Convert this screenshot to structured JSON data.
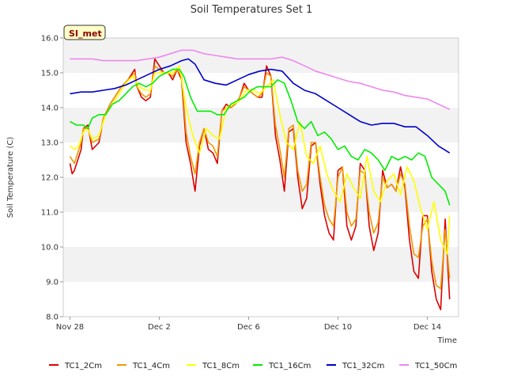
{
  "chart_data": {
    "type": "line",
    "title": "Soil Temperatures Set 1",
    "xlabel": "Time",
    "ylabel": "Soil Temperature (C)",
    "badge": "SI_met",
    "ylim": [
      8.0,
      16.0
    ],
    "yticks": [
      8.0,
      9.0,
      10.0,
      11.0,
      12.0,
      13.0,
      14.0,
      15.0,
      16.0
    ],
    "xlim": [
      -0.3,
      17.4
    ],
    "xticks": [
      {
        "label": "Nov 28",
        "x": 0
      },
      {
        "label": "Dec 2",
        "x": 4
      },
      {
        "label": "Dec 6",
        "x": 8
      },
      {
        "label": "Dec 10",
        "x": 12
      },
      {
        "label": "Dec 14",
        "x": 16
      }
    ],
    "x_units": "days after Nov 28",
    "grid": "horizontal bands",
    "legend_position": "bottom",
    "series": [
      {
        "name": "TC1_2Cm",
        "color": "#dd0000",
        "x": [
          0.0,
          0.1,
          0.2,
          0.4,
          0.5,
          0.6,
          0.8,
          1.0,
          1.3,
          1.5,
          1.8,
          2.0,
          2.3,
          2.6,
          2.9,
          3.0,
          3.2,
          3.4,
          3.6,
          3.8,
          4.0,
          4.2,
          4.4,
          4.6,
          4.8,
          5.0,
          5.2,
          5.4,
          5.6,
          5.8,
          6.0,
          6.2,
          6.4,
          6.6,
          6.8,
          7.0,
          7.2,
          7.4,
          7.6,
          7.8,
          8.0,
          8.2,
          8.4,
          8.6,
          8.8,
          9.0,
          9.2,
          9.4,
          9.6,
          9.8,
          10.0,
          10.2,
          10.4,
          10.6,
          10.8,
          11.0,
          11.2,
          11.4,
          11.6,
          11.8,
          12.0,
          12.2,
          12.4,
          12.6,
          12.8,
          13.0,
          13.2,
          13.4,
          13.6,
          13.8,
          14.0,
          14.2,
          14.4,
          14.6,
          14.8,
          15.0,
          15.2,
          15.4,
          15.6,
          15.8,
          16.0,
          16.2,
          16.4,
          16.6,
          16.8,
          17.0
        ],
        "y": [
          12.4,
          12.1,
          12.2,
          12.6,
          12.8,
          13.4,
          13.5,
          12.8,
          13.0,
          13.7,
          14.1,
          14.3,
          14.6,
          14.8,
          15.1,
          14.6,
          14.3,
          14.2,
          14.3,
          15.4,
          15.2,
          15.0,
          15.0,
          14.8,
          15.1,
          14.8,
          13.0,
          12.4,
          11.6,
          12.9,
          13.4,
          12.8,
          12.7,
          12.4,
          13.9,
          14.1,
          14.0,
          14.1,
          14.3,
          14.7,
          14.5,
          14.4,
          14.3,
          14.3,
          15.2,
          14.9,
          13.2,
          12.5,
          11.6,
          13.3,
          13.4,
          12.0,
          11.1,
          11.4,
          12.9,
          13.0,
          11.8,
          10.9,
          10.4,
          10.2,
          12.2,
          12.3,
          10.6,
          10.2,
          10.6,
          12.4,
          12.2,
          10.6,
          9.9,
          10.4,
          12.2,
          11.7,
          11.8,
          11.6,
          12.3,
          11.7,
          10.2,
          9.3,
          9.1,
          10.9,
          10.9,
          9.3,
          8.5,
          8.2,
          10.8,
          8.5
        ]
      },
      {
        "name": "TC1_4Cm",
        "color": "#ee9900",
        "x": [
          0.0,
          0.2,
          0.4,
          0.5,
          0.6,
          0.8,
          1.0,
          1.3,
          1.5,
          1.8,
          2.0,
          2.3,
          2.6,
          2.9,
          3.0,
          3.2,
          3.4,
          3.6,
          3.8,
          4.0,
          4.2,
          4.4,
          4.6,
          4.8,
          5.0,
          5.2,
          5.4,
          5.6,
          5.8,
          6.0,
          6.2,
          6.4,
          6.6,
          6.8,
          7.0,
          7.2,
          7.4,
          7.6,
          7.8,
          8.0,
          8.2,
          8.4,
          8.6,
          8.8,
          9.0,
          9.2,
          9.4,
          9.6,
          9.8,
          10.0,
          10.2,
          10.4,
          10.6,
          10.8,
          11.0,
          11.2,
          11.4,
          11.6,
          11.8,
          12.0,
          12.2,
          12.4,
          12.6,
          12.8,
          13.0,
          13.2,
          13.4,
          13.6,
          13.8,
          14.0,
          14.2,
          14.4,
          14.6,
          14.8,
          15.0,
          15.2,
          15.4,
          15.6,
          15.8,
          16.0,
          16.2,
          16.4,
          16.6,
          16.8,
          17.0
        ],
        "y": [
          12.6,
          12.4,
          12.8,
          13.0,
          13.4,
          13.4,
          13.0,
          13.1,
          13.7,
          14.1,
          14.3,
          14.6,
          14.8,
          15.0,
          14.6,
          14.4,
          14.3,
          14.4,
          15.2,
          15.1,
          15.0,
          15.0,
          14.9,
          15.1,
          14.9,
          13.3,
          12.6,
          12.1,
          13.0,
          13.4,
          13.0,
          12.9,
          12.6,
          13.9,
          14.0,
          14.0,
          14.1,
          14.3,
          14.6,
          14.5,
          14.4,
          14.3,
          14.4,
          15.0,
          14.9,
          13.5,
          12.8,
          12.0,
          13.4,
          13.5,
          12.2,
          11.6,
          11.8,
          13.0,
          13.0,
          12.0,
          11.2,
          10.8,
          10.6,
          12.0,
          12.3,
          11.0,
          10.6,
          10.8,
          12.2,
          12.1,
          11.0,
          10.4,
          10.7,
          12.0,
          11.7,
          11.8,
          11.6,
          12.1,
          11.8,
          10.6,
          9.8,
          9.7,
          10.6,
          10.8,
          9.6,
          8.9,
          8.8,
          10.5,
          9.1
        ]
      },
      {
        "name": "TC1_8Cm",
        "color": "#ffff00",
        "x": [
          0.0,
          0.2,
          0.4,
          0.6,
          0.8,
          1.0,
          1.3,
          1.6,
          1.9,
          2.2,
          2.5,
          2.8,
          3.1,
          3.4,
          3.6,
          3.8,
          4.0,
          4.3,
          4.6,
          4.9,
          5.2,
          5.5,
          5.8,
          6.1,
          6.4,
          6.7,
          7.0,
          7.3,
          7.6,
          7.9,
          8.2,
          8.5,
          8.8,
          9.1,
          9.4,
          9.7,
          10.0,
          10.3,
          10.6,
          10.9,
          11.2,
          11.5,
          11.8,
          12.1,
          12.4,
          12.7,
          13.0,
          13.3,
          13.6,
          13.9,
          14.2,
          14.5,
          14.8,
          15.1,
          15.4,
          15.7,
          16.0,
          16.3,
          16.6,
          16.9,
          17.0
        ],
        "y": [
          12.9,
          12.8,
          12.9,
          13.3,
          13.4,
          13.1,
          13.2,
          13.8,
          14.1,
          14.4,
          14.7,
          14.9,
          14.6,
          14.5,
          14.5,
          15.0,
          15.0,
          15.0,
          15.0,
          15.2,
          14.0,
          13.2,
          12.7,
          13.4,
          13.2,
          13.1,
          14.0,
          14.1,
          14.2,
          14.5,
          14.5,
          14.4,
          14.6,
          14.8,
          13.8,
          13.0,
          12.8,
          13.6,
          12.6,
          12.4,
          12.9,
          12.1,
          11.6,
          11.3,
          12.1,
          11.7,
          11.4,
          12.6,
          11.6,
          11.3,
          11.9,
          12.1,
          11.5,
          12.3,
          11.9,
          11.1,
          10.5,
          11.3,
          10.2,
          9.8,
          10.9
        ]
      },
      {
        "name": "TC1_16Cm",
        "color": "#00ee00",
        "x": [
          0.0,
          0.3,
          0.6,
          0.8,
          1.0,
          1.3,
          1.6,
          1.9,
          2.2,
          2.5,
          2.8,
          3.1,
          3.4,
          3.7,
          4.0,
          4.3,
          4.6,
          4.9,
          5.1,
          5.4,
          5.7,
          6.0,
          6.3,
          6.6,
          6.9,
          7.2,
          7.5,
          7.8,
          8.1,
          8.4,
          8.7,
          9.0,
          9.3,
          9.6,
          9.9,
          10.2,
          10.5,
          10.8,
          11.1,
          11.4,
          11.7,
          12.0,
          12.3,
          12.6,
          12.9,
          13.2,
          13.5,
          13.8,
          14.1,
          14.4,
          14.7,
          15.0,
          15.3,
          15.6,
          15.9,
          16.2,
          16.5,
          16.8,
          17.0
        ],
        "y": [
          13.6,
          13.5,
          13.5,
          13.4,
          13.7,
          13.8,
          13.8,
          14.1,
          14.2,
          14.4,
          14.6,
          14.7,
          14.6,
          14.7,
          14.9,
          15.0,
          15.1,
          15.1,
          14.9,
          14.3,
          13.9,
          13.9,
          13.9,
          13.8,
          13.8,
          14.1,
          14.2,
          14.3,
          14.5,
          14.6,
          14.6,
          14.6,
          14.8,
          14.7,
          14.2,
          13.6,
          13.4,
          13.6,
          13.2,
          13.3,
          13.1,
          12.8,
          12.9,
          12.6,
          12.5,
          12.8,
          12.7,
          12.5,
          12.2,
          12.6,
          12.5,
          12.6,
          12.5,
          12.7,
          12.6,
          12.0,
          11.8,
          11.6,
          11.2
        ]
      },
      {
        "name": "TC1_32Cm",
        "color": "#0000cc",
        "x": [
          0.0,
          0.5,
          1.0,
          1.5,
          2.0,
          2.5,
          3.0,
          3.5,
          4.0,
          4.5,
          5.0,
          5.3,
          5.6,
          6.0,
          6.5,
          7.0,
          7.5,
          8.0,
          8.5,
          9.0,
          9.5,
          10.0,
          10.5,
          11.0,
          11.5,
          12.0,
          12.5,
          13.0,
          13.5,
          14.0,
          14.5,
          15.0,
          15.5,
          16.0,
          16.5,
          17.0
        ],
        "y": [
          14.4,
          14.45,
          14.45,
          14.5,
          14.55,
          14.65,
          14.8,
          14.95,
          15.1,
          15.2,
          15.35,
          15.4,
          15.25,
          14.8,
          14.7,
          14.65,
          14.8,
          14.95,
          15.05,
          15.1,
          15.05,
          14.7,
          14.5,
          14.4,
          14.2,
          14.0,
          13.8,
          13.6,
          13.5,
          13.55,
          13.55,
          13.45,
          13.45,
          13.2,
          12.9,
          12.7
        ]
      },
      {
        "name": "TC1_50Cm",
        "color": "#ee88ee",
        "x": [
          0.0,
          0.5,
          1.0,
          1.5,
          2.0,
          2.5,
          3.0,
          3.5,
          4.0,
          4.5,
          5.0,
          5.5,
          6.0,
          6.5,
          7.0,
          7.5,
          8.0,
          8.5,
          9.0,
          9.5,
          10.0,
          10.5,
          11.0,
          11.5,
          12.0,
          12.5,
          13.0,
          13.5,
          14.0,
          14.5,
          15.0,
          15.5,
          16.0,
          16.5,
          17.0
        ],
        "y": [
          15.4,
          15.4,
          15.4,
          15.35,
          15.35,
          15.35,
          15.35,
          15.4,
          15.45,
          15.55,
          15.65,
          15.65,
          15.55,
          15.5,
          15.45,
          15.4,
          15.4,
          15.4,
          15.4,
          15.45,
          15.35,
          15.2,
          15.05,
          14.95,
          14.85,
          14.75,
          14.7,
          14.6,
          14.5,
          14.45,
          14.35,
          14.3,
          14.25,
          14.1,
          13.95
        ]
      }
    ]
  }
}
